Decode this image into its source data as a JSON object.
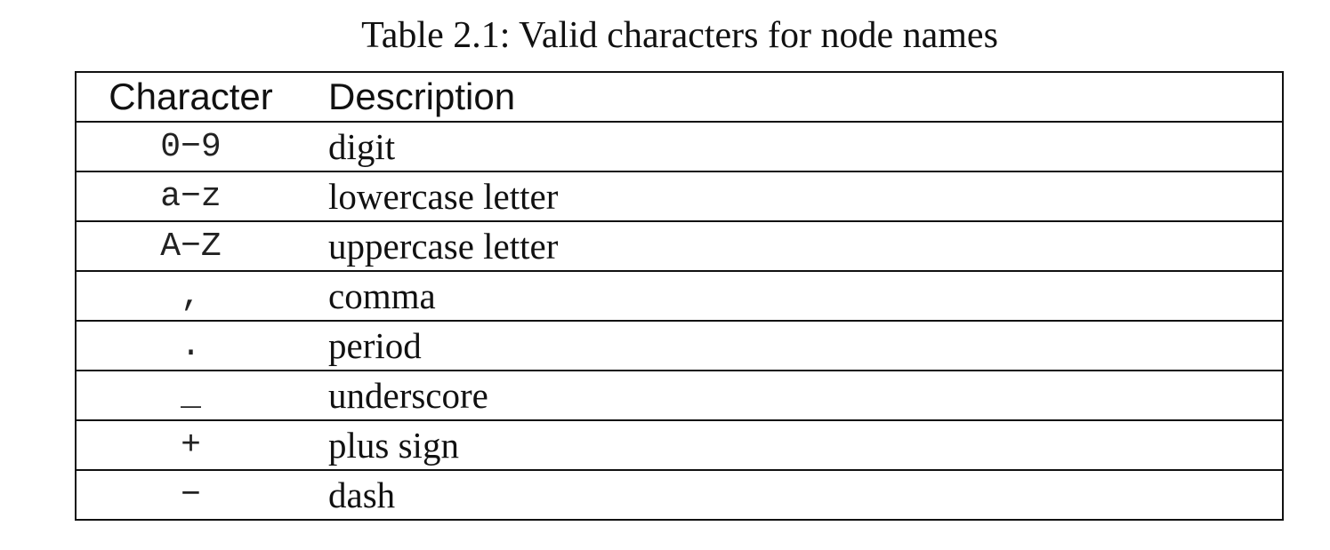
{
  "caption": "Table 2.1: Valid characters for node names",
  "table": {
    "headers": {
      "character": "Character",
      "description": "Description"
    },
    "rows": [
      {
        "character": "0−9",
        "description": "digit"
      },
      {
        "character": "a−z",
        "description": "lowercase letter"
      },
      {
        "character": "A−Z",
        "description": "uppercase letter"
      },
      {
        "character": ",",
        "description": "comma"
      },
      {
        "character": ".",
        "description": "period"
      },
      {
        "character": "_",
        "description": "underscore"
      },
      {
        "character": "+",
        "description": "plus sign"
      },
      {
        "character": "−",
        "description": "dash"
      }
    ]
  }
}
